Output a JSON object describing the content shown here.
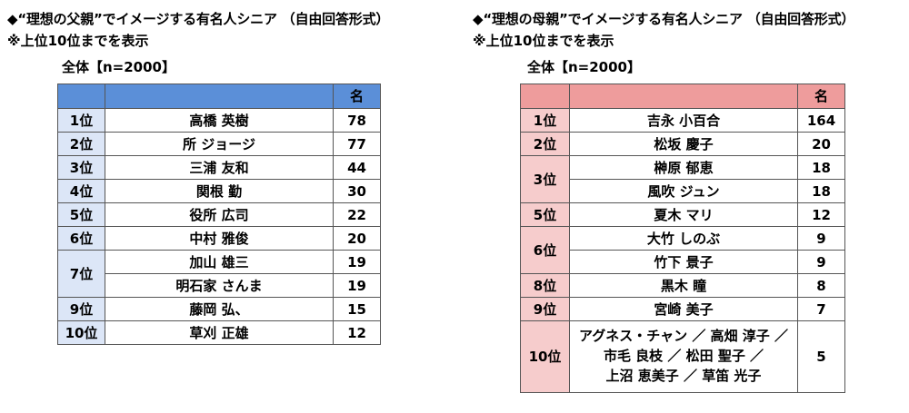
{
  "father": {
    "title": "◆“理想の父親”でイメージする有名人シニア （自由回答形式）",
    "note": "※上位10位までを表示",
    "total": "全体【n=2000】",
    "col_header": "名",
    "rows": [
      {
        "rank": "1位",
        "names": [
          "高橋 英樹"
        ],
        "counts": [
          "78"
        ]
      },
      {
        "rank": "2位",
        "names": [
          "所 ジョージ"
        ],
        "counts": [
          "77"
        ]
      },
      {
        "rank": "3位",
        "names": [
          "三浦 友和"
        ],
        "counts": [
          "44"
        ]
      },
      {
        "rank": "4位",
        "names": [
          "関根 勤"
        ],
        "counts": [
          "30"
        ]
      },
      {
        "rank": "5位",
        "names": [
          "役所 広司"
        ],
        "counts": [
          "22"
        ]
      },
      {
        "rank": "6位",
        "names": [
          "中村 雅俊"
        ],
        "counts": [
          "20"
        ]
      },
      {
        "rank": "7位",
        "names": [
          "加山 雄三",
          "明石家 さんま"
        ],
        "counts": [
          "19",
          "19"
        ]
      },
      {
        "rank": "9位",
        "names": [
          "藤岡 弘、"
        ],
        "counts": [
          "15"
        ]
      },
      {
        "rank": "10位",
        "names": [
          "草刈 正雄"
        ],
        "counts": [
          "12"
        ]
      }
    ]
  },
  "mother": {
    "title": "◆“理想の母親”でイメージする有名人シニア （自由回答形式）",
    "note": "※上位10位までを表示",
    "total": "全体【n=2000】",
    "col_header": "名",
    "rows": [
      {
        "rank": "1位",
        "names": [
          "吉永 小百合"
        ],
        "counts": [
          "164"
        ]
      },
      {
        "rank": "2位",
        "names": [
          "松坂 慶子"
        ],
        "counts": [
          "20"
        ]
      },
      {
        "rank": "3位",
        "names": [
          "榊原 郁恵",
          "風吹 ジュン"
        ],
        "counts": [
          "18",
          "18"
        ]
      },
      {
        "rank": "5位",
        "names": [
          "夏木 マリ"
        ],
        "counts": [
          "12"
        ]
      },
      {
        "rank": "6位",
        "names": [
          "大竹 しのぶ",
          "竹下 景子"
        ],
        "counts": [
          "9",
          "9"
        ]
      },
      {
        "rank": "8位",
        "names": [
          "黒木 瞳"
        ],
        "counts": [
          "8"
        ]
      },
      {
        "rank": "9位",
        "names": [
          "宮崎 美子"
        ],
        "counts": [
          "7"
        ]
      }
    ],
    "tenth": {
      "rank": "10位",
      "lines": [
        "アグネス・チャン ／ 高畑 淳子 ／",
        "市毛 良枝 ／ 松田 聖子 ／",
        "上沼 恵美子 ／ 草笛 光子"
      ],
      "count": "5"
    }
  }
}
